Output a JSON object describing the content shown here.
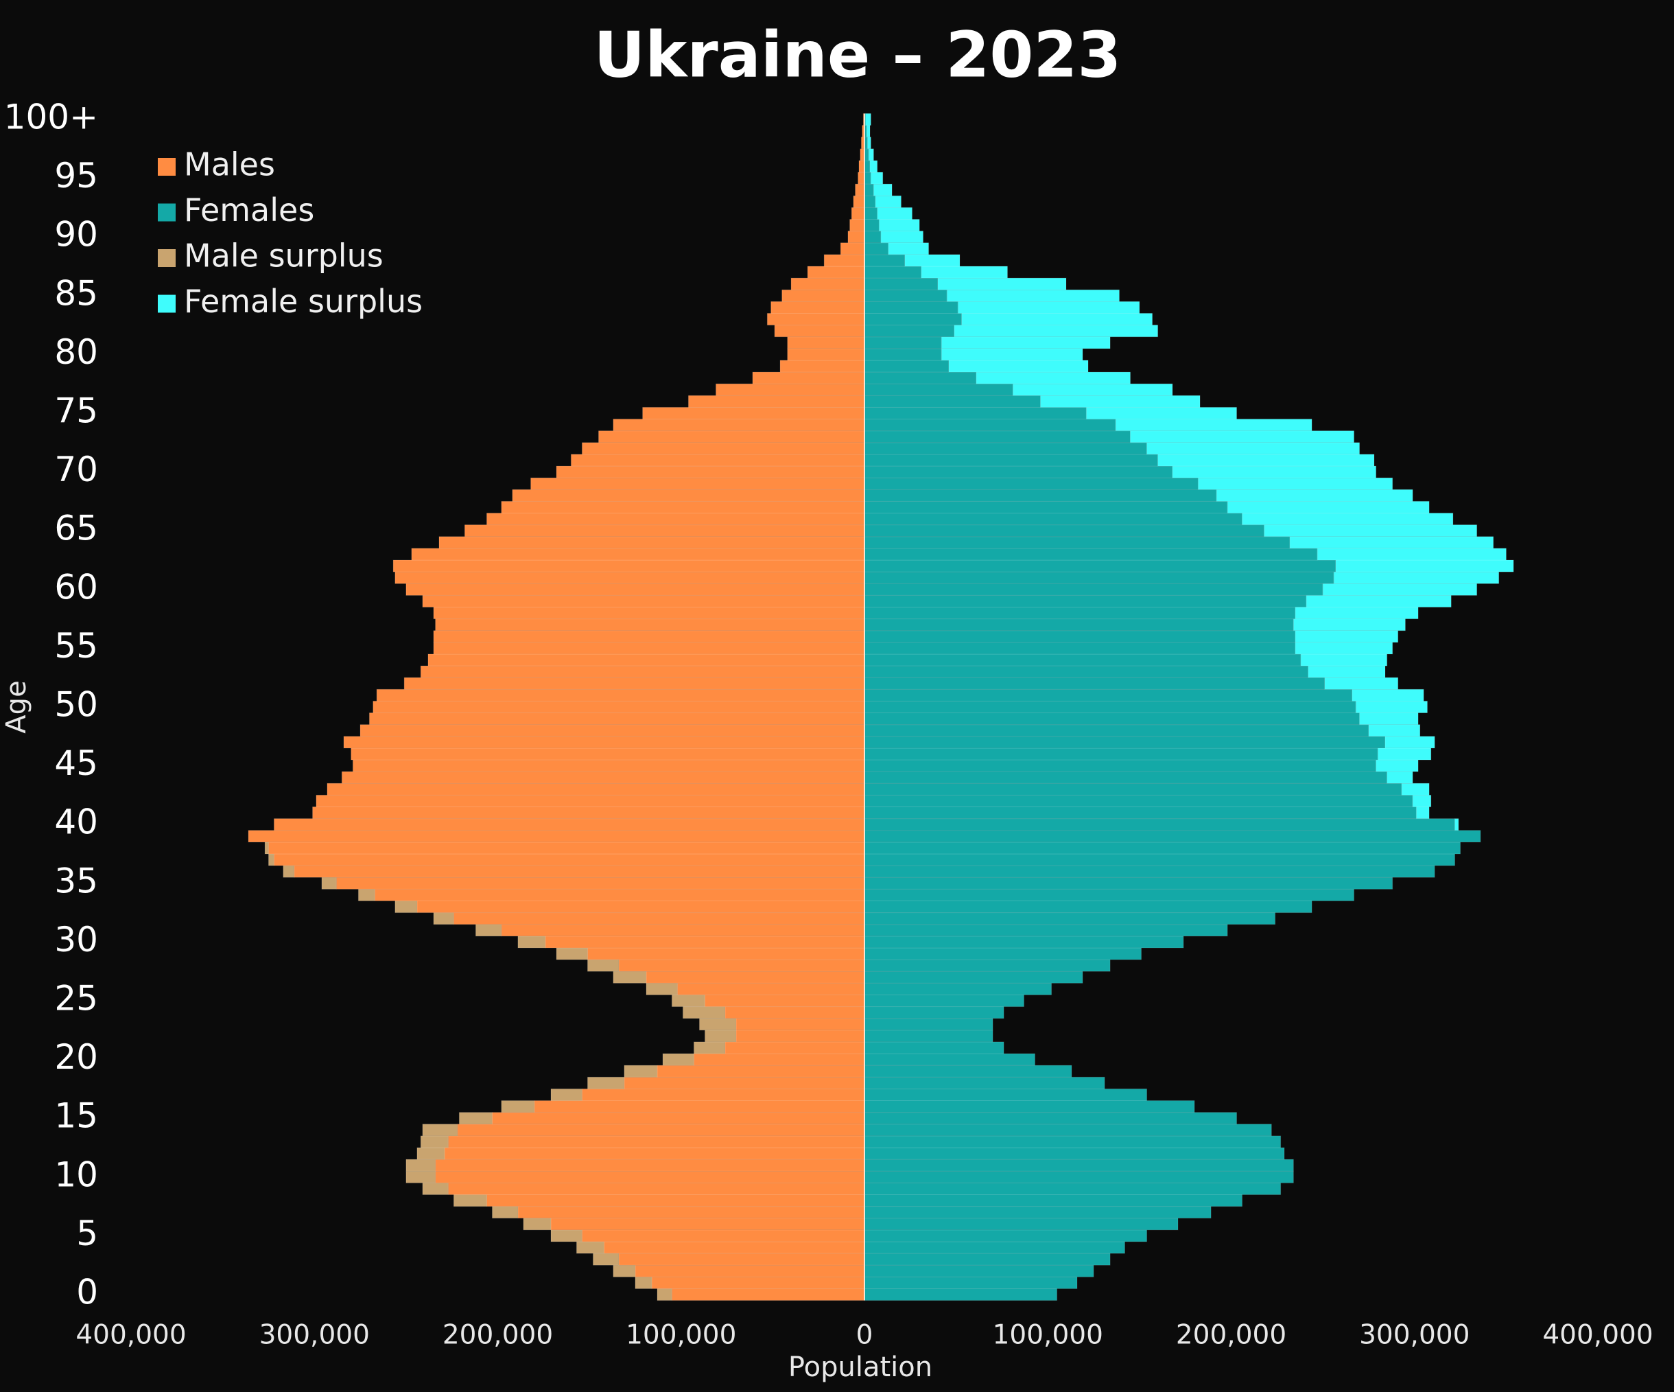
{
  "chart_data": {
    "type": "pyramid",
    "title": "Ukraine – 2023",
    "x_label": "Population",
    "y_label": "Age",
    "categories": [
      "0",
      null,
      null,
      null,
      null,
      "5",
      null,
      null,
      null,
      null,
      "10",
      null,
      null,
      null,
      null,
      "15",
      null,
      null,
      null,
      null,
      "20",
      null,
      null,
      null,
      null,
      "25",
      null,
      null,
      null,
      null,
      "30",
      null,
      null,
      null,
      null,
      "35",
      null,
      null,
      null,
      null,
      "40",
      null,
      null,
      null,
      null,
      "45",
      null,
      null,
      null,
      null,
      "50",
      null,
      null,
      null,
      null,
      "55",
      null,
      null,
      null,
      null,
      "60",
      null,
      null,
      null,
      null,
      "65",
      null,
      null,
      null,
      null,
      "70",
      null,
      null,
      null,
      null,
      "75",
      null,
      null,
      null,
      null,
      "80",
      null,
      null,
      null,
      null,
      "85",
      null,
      null,
      null,
      null,
      "90",
      null,
      null,
      null,
      null,
      "95",
      null,
      null,
      null,
      null,
      "100+"
    ],
    "series": [
      {
        "name": "Males",
        "color": "#ff8c42",
        "values": [
          -105000,
          -116000,
          -125000,
          -134000,
          -142000,
          -154000,
          -171000,
          -189000,
          -206000,
          -227000,
          -234000,
          -234000,
          -229000,
          -227000,
          -222000,
          -203000,
          -180000,
          -154000,
          -131000,
          -113000,
          -93000,
          -76000,
          -70000,
          -70000,
          -76000,
          -87000,
          -102000,
          -119000,
          -134000,
          -151000,
          -174000,
          -198000,
          -224000,
          -244000,
          -267000,
          -288000,
          -311000,
          -322000,
          -325000,
          -336000,
          -322000,
          -301000,
          -299000,
          -293000,
          -285000,
          -279000,
          -280000,
          -284000,
          -275000,
          -270000,
          -268000,
          -266000,
          -251000,
          -242000,
          -238000,
          -235000,
          -235000,
          -234000,
          -235000,
          -241000,
          -250000,
          -256000,
          -257000,
          -247000,
          -232000,
          -218000,
          -206000,
          -198000,
          -192000,
          -182000,
          -168000,
          -160000,
          -154000,
          -145000,
          -137000,
          -121000,
          -96000,
          -81000,
          -61000,
          -46000,
          -42000,
          -42000,
          -49000,
          -53000,
          -51000,
          -45000,
          -40000,
          -31000,
          -22000,
          -13000,
          -9000,
          -8000,
          -7000,
          -6000,
          -5000,
          -3500,
          -3000,
          -2300,
          -1700,
          -1200,
          -600
        ]
      },
      {
        "name": "Females",
        "color": "#14a9a7",
        "values": [
          105000,
          116000,
          125000,
          134000,
          142000,
          154000,
          171000,
          189000,
          206000,
          227000,
          234000,
          234000,
          229000,
          227000,
          222000,
          203000,
          180000,
          154000,
          131000,
          113000,
          93000,
          76000,
          70000,
          70000,
          76000,
          87000,
          102000,
          119000,
          134000,
          151000,
          174000,
          198000,
          224000,
          244000,
          267000,
          288000,
          311000,
          322000,
          325000,
          336000,
          322000,
          301000,
          299000,
          293000,
          285000,
          279000,
          280000,
          284000,
          275000,
          270000,
          268000,
          266000,
          251000,
          242000,
          238000,
          235000,
          235000,
          234000,
          235000,
          241000,
          250000,
          256000,
          257000,
          247000,
          232000,
          218000,
          206000,
          198000,
          192000,
          182000,
          168000,
          160000,
          154000,
          145000,
          137000,
          121000,
          96000,
          81000,
          61000,
          46000,
          42000,
          42000,
          49000,
          53000,
          51000,
          45000,
          40000,
          31000,
          22000,
          13000,
          9000,
          8000,
          7000,
          6000,
          5000,
          3500,
          3000,
          2300,
          1700,
          1200,
          600
        ]
      },
      {
        "name": "Male surplus",
        "color": "#c9a46f",
        "values": [
          -8000,
          -9000,
          -12000,
          -14000,
          -15000,
          -17000,
          -15000,
          -14000,
          -18000,
          -14000,
          -16000,
          -16000,
          -15000,
          -15000,
          -19000,
          -18000,
          -18000,
          -17000,
          -20000,
          -18000,
          -17000,
          -17000,
          -17000,
          -20000,
          -23000,
          -18000,
          -17000,
          -18000,
          -17000,
          -17000,
          -15000,
          -14000,
          -11000,
          -12000,
          -9000,
          -8000,
          -6000,
          -3000,
          -2000,
          0,
          0,
          0,
          0,
          0,
          0,
          0,
          0,
          0,
          0,
          0,
          0,
          0,
          0,
          0,
          0,
          0,
          0,
          0,
          0,
          0,
          0,
          0,
          0,
          0,
          0,
          0,
          0,
          0,
          0,
          0,
          0,
          0,
          0,
          0,
          0,
          0,
          0,
          0,
          0,
          0,
          0,
          0,
          0,
          0,
          0,
          0,
          0,
          0,
          0,
          0,
          0,
          0,
          0,
          0,
          0,
          0,
          0,
          0,
          0,
          0,
          0
        ]
      },
      {
        "name": "Female surplus",
        "color": "#3ffcfc",
        "values": [
          0,
          0,
          0,
          0,
          0,
          0,
          0,
          0,
          0,
          0,
          0,
          0,
          0,
          0,
          0,
          0,
          0,
          0,
          0,
          0,
          0,
          0,
          0,
          0,
          0,
          0,
          0,
          0,
          0,
          0,
          0,
          0,
          0,
          0,
          0,
          0,
          0,
          0,
          0,
          0,
          2000,
          7000,
          10000,
          15000,
          14000,
          23000,
          29000,
          27000,
          28000,
          32000,
          39000,
          39000,
          40000,
          42000,
          47000,
          53000,
          56000,
          61000,
          67000,
          79000,
          84000,
          90000,
          97000,
          103000,
          111000,
          116000,
          115000,
          110000,
          107000,
          106000,
          111000,
          118000,
          116000,
          122000,
          107000,
          82000,
          87000,
          87000,
          84000,
          76000,
          77000,
          92000,
          111000,
          104000,
          99000,
          94000,
          70000,
          47000,
          30000,
          22000,
          23000,
          22000,
          19000,
          14000,
          10000,
          6500,
          4000,
          2700,
          1800,
          1800,
          2900
        ]
      }
    ],
    "xlim": [
      -400000,
      400000
    ],
    "xticks": [
      {
        "value": -400000,
        "label": "400,000"
      },
      {
        "value": -300000,
        "label": "300,000"
      },
      {
        "value": -200000,
        "label": "200,000"
      },
      {
        "value": -100000,
        "label": "100,000"
      },
      0,
      {
        "value": 100000,
        "label": "100,000"
      },
      {
        "value": 200000,
        "label": "200,000"
      },
      {
        "value": 300000,
        "label": "300,000"
      },
      {
        "value": 400000,
        "label": "400,000"
      }
    ],
    "legend": "upper left",
    "grid": false
  }
}
